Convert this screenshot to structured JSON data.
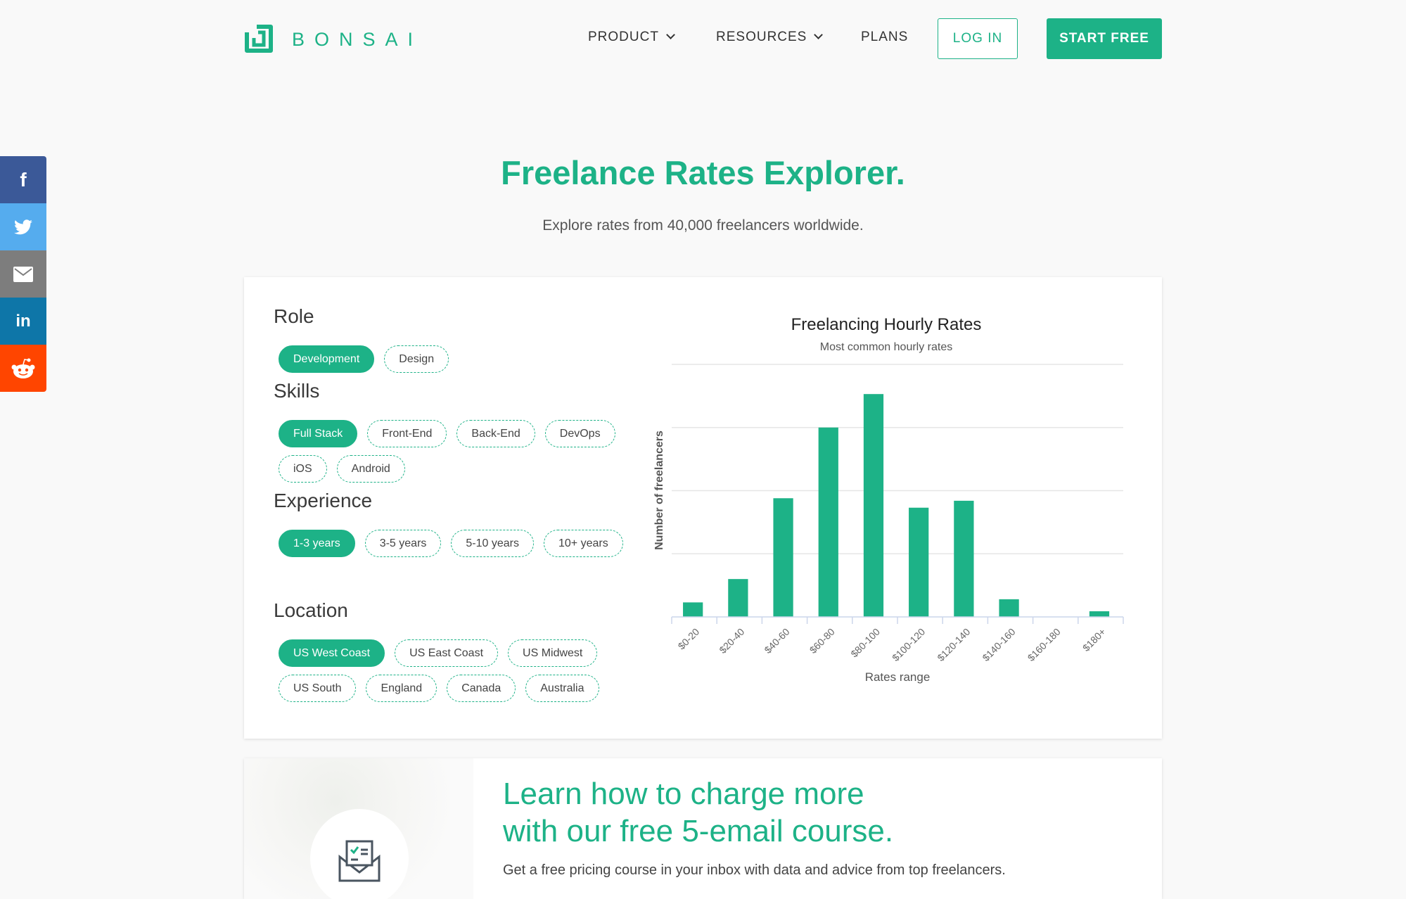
{
  "brand": {
    "name": "BONSAI",
    "color": "#1db287"
  },
  "nav": {
    "items": [
      {
        "label": "PRODUCT",
        "dropdown": true
      },
      {
        "label": "RESOURCES",
        "dropdown": true
      },
      {
        "label": "PLANS",
        "dropdown": false
      }
    ],
    "login": "LOG IN",
    "start": "START FREE"
  },
  "social": [
    {
      "icon": "facebook-icon",
      "color": "#3b5998"
    },
    {
      "icon": "twitter-icon",
      "color": "#55acee"
    },
    {
      "icon": "email-icon",
      "color": "#7d7d7d"
    },
    {
      "icon": "linkedin-icon",
      "color": "#0e76a8"
    },
    {
      "icon": "reddit-icon",
      "color": "#ff4500"
    }
  ],
  "hero": {
    "title": "Freelance Rates Explorer.",
    "subtitle": "Explore rates from 40,000 freelancers worldwide."
  },
  "filters": {
    "role": {
      "label": "Role",
      "options": [
        "Development",
        "Design"
      ],
      "selected": "Development"
    },
    "skills": {
      "label": "Skills",
      "options": [
        "Full Stack",
        "Front-End",
        "Back-End",
        "DevOps",
        "iOS",
        "Android"
      ],
      "selected": "Full Stack"
    },
    "experience": {
      "label": "Experience",
      "options": [
        "1-3 years",
        "3-5 years",
        "5-10 years",
        "10+ years"
      ],
      "selected": "1-3 years"
    },
    "location": {
      "label": "Location",
      "options": [
        "US West Coast",
        "US East Coast",
        "US Midwest",
        "US South",
        "England",
        "Canada",
        "Australia"
      ],
      "selected": "US West Coast"
    }
  },
  "chart_data": {
    "type": "bar",
    "title": "Freelancing Hourly Rates",
    "subtitle": "Most common hourly rates",
    "xlabel": "Rates range",
    "ylabel": "Number of freelancers",
    "categories": [
      "$0-20",
      "$20-40",
      "$40-60",
      "$60-80",
      "$80-100",
      "$100-120",
      "$120-140",
      "$140-160",
      "$160-180",
      "$180+"
    ],
    "values": [
      0.23,
      0.6,
      1.88,
      3.0,
      3.53,
      1.73,
      1.84,
      0.28,
      0,
      0.09
    ],
    "ylim": [
      0,
      4
    ],
    "grid": true,
    "color": "#1db287"
  },
  "course": {
    "title_line1": "Learn how to charge more",
    "title_line2": "with our free 5-email course.",
    "text": "Get a free pricing course in your inbox with data and advice from top freelancers."
  }
}
